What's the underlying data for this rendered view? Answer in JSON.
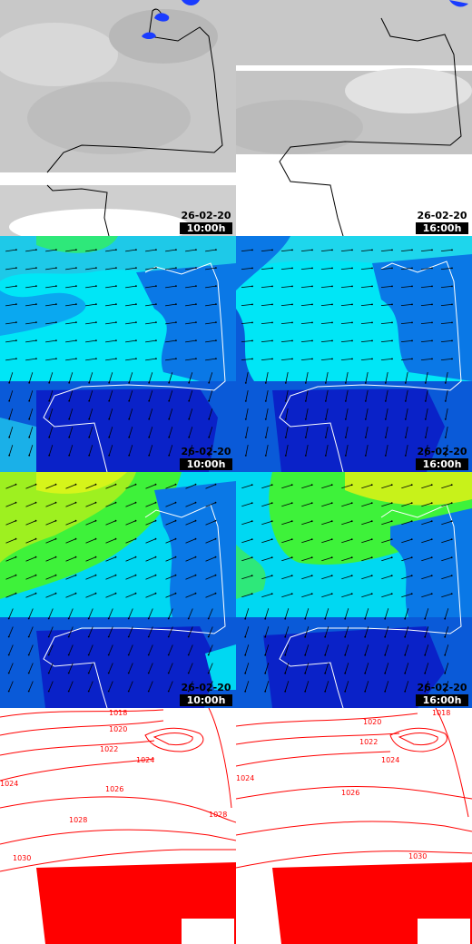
{
  "panels": [
    {
      "row": 0,
      "col": 0,
      "layer": "cloud",
      "date": "26-02-20",
      "time": "10:00h"
    },
    {
      "row": 0,
      "col": 1,
      "layer": "cloud",
      "date": "26-02-20",
      "time": "16:00h"
    },
    {
      "row": 1,
      "col": 0,
      "layer": "wind-low",
      "date": "26-02-20",
      "time": "10:00h"
    },
    {
      "row": 1,
      "col": 1,
      "layer": "wind-low",
      "date": "26-02-20",
      "time": "16:00h"
    },
    {
      "row": 2,
      "col": 0,
      "layer": "wind-high",
      "date": "26-02-20",
      "time": "10:00h"
    },
    {
      "row": 2,
      "col": 1,
      "layer": "wind-high",
      "date": "26-02-20",
      "time": "16:00h"
    },
    {
      "row": 3,
      "col": 0,
      "layer": "pressure",
      "date": "",
      "time": ""
    },
    {
      "row": 3,
      "col": 1,
      "layer": "pressure",
      "date": "",
      "time": ""
    }
  ],
  "isobars_left": [
    "1018",
    "1020",
    "1022",
    "1024",
    "1024",
    "1026",
    "1028",
    "1028",
    "1030"
  ],
  "isobars_right": [
    "1018",
    "1020",
    "1022",
    "1024",
    "1024",
    "1026",
    "1030"
  ],
  "colors": {
    "coast": "#ffffff",
    "coast_cloud": "#000000",
    "isobar": "#ff0000",
    "precip": "#1a3cff",
    "cloud_gray": "#c4c4c4",
    "wind_cyan": "#00e8ff",
    "wind_blue": "#0a22c8",
    "wind_green": "#3ef23a",
    "wind_yellow": "#d6f51a"
  },
  "icons": {
    "wind_arrow": "wind-arrow-icon",
    "isobar": "isobar-line"
  }
}
